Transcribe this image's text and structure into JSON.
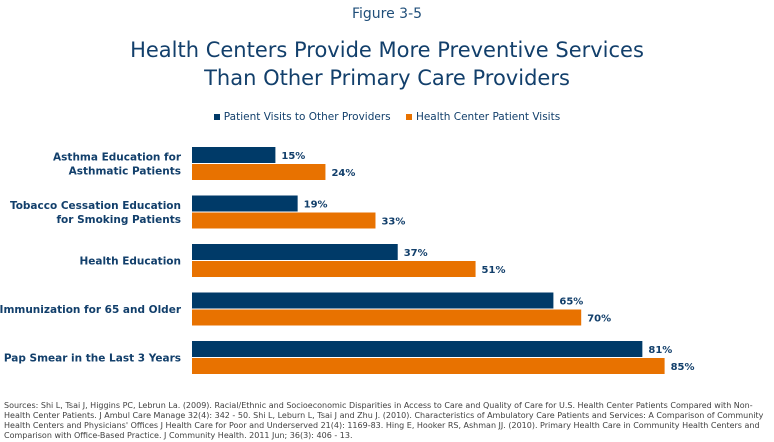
{
  "figure_label": "Figure 3-5",
  "title_line1": "Health Centers Provide More Preventive Services",
  "title_line2": "Than Other Primary Care Providers",
  "sources": "Sources: Shi L, Tsai J, Higgins PC, Lebrun La. (2009). Racial/Ethnic and Socioeconomic Disparities in Access to Care and Quality of Care for U.S. Health Center Patients Compared with Non-Health Center Patients. J Ambul Care Manage 32(4): 342 - 50. Shi L, Leburn L, Tsai J and Zhu J. (2010). Characteristics of Ambulatory Care Patients and Services: A Comparison of Community Health Centers and Physicians' Offices J Health Care for Poor and Underserved 21(4): 1169-83. Hing E, Hooker RS, Ashman JJ. (2010). Primary Health Care in Community Health Centers and Comparison with Office-Based Practice. J Community Health. 2011 Jun; 36(3): 406 - 13.",
  "chart_data": {
    "type": "bar",
    "orientation": "horizontal",
    "title": "Health Centers Provide More Preventive Services Than Other Primary Care Providers",
    "xlabel": "",
    "ylabel": "",
    "xlim": [
      0,
      100
    ],
    "grid": false,
    "legend_position": "top-center",
    "categories": [
      [
        "Asthma Education for",
        "Asthmatic Patients"
      ],
      [
        "Tobacco Cessation Education",
        "for Smoking Patients"
      ],
      [
        "Health Education"
      ],
      [
        "Immunization for 65 and Older"
      ],
      [
        "Pap Smear in the Last 3 Years"
      ]
    ],
    "series": [
      {
        "name": "Patient Visits to Other Providers",
        "color": "#003a68",
        "values": [
          15,
          19,
          37,
          65,
          81
        ]
      },
      {
        "name": "Health Center Patient Visits",
        "color": "#e87200",
        "values": [
          24,
          33,
          51,
          70,
          85
        ]
      }
    ],
    "value_suffix": "%"
  }
}
